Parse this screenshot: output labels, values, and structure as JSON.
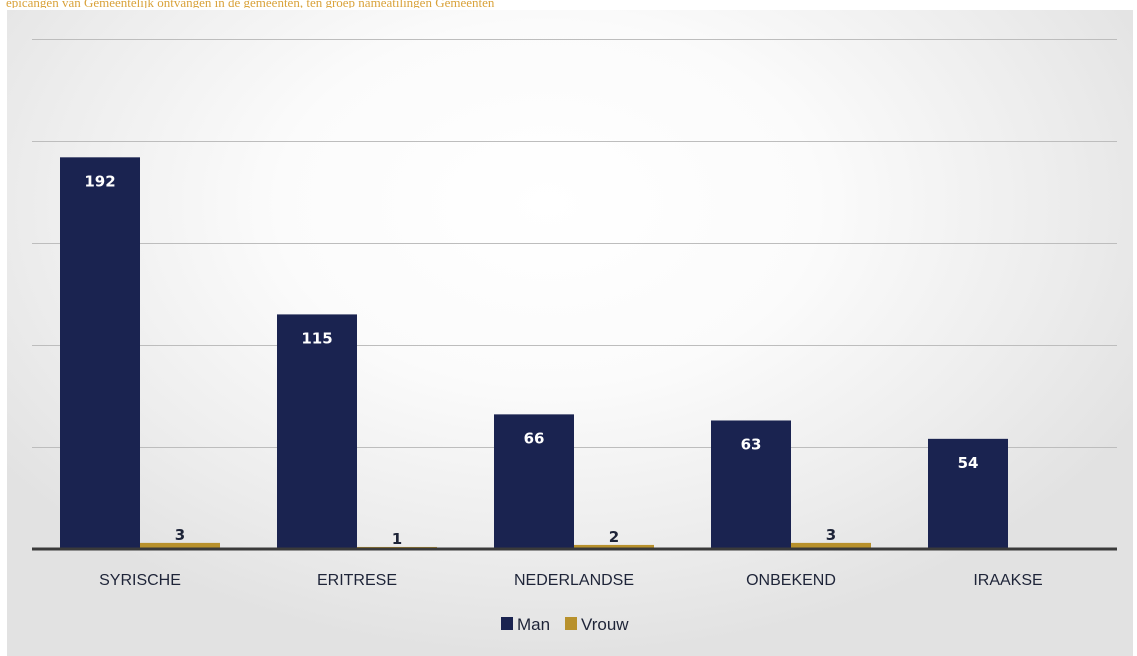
{
  "chart_data": {
    "type": "bar",
    "categories": [
      "SYRISCHE",
      "ERITRESE",
      "NEDERLANDSE",
      "ONBEKEND",
      "IRAAKSE"
    ],
    "series": [
      {
        "name": "Man",
        "values": [
          192,
          115,
          66,
          63,
          54
        ],
        "color": "#1a2350"
      },
      {
        "name": "Vrouw",
        "values": [
          3,
          1,
          2,
          3,
          null
        ],
        "color": "#b8912c"
      }
    ],
    "ylim": [
      0,
      250
    ],
    "grid": true,
    "legend": "bottom"
  },
  "top_caption": "epicangen van Gemeentelijk ontvangen in de gemeenten, ten groep nameatilingen Gemeenten"
}
